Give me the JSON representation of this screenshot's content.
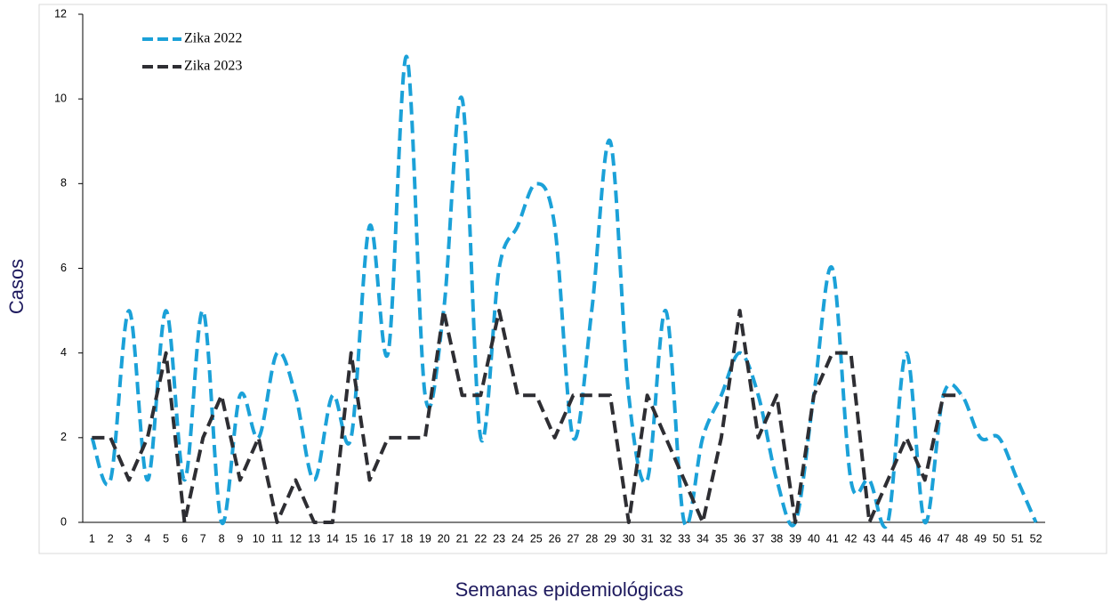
{
  "chart_data": {
    "type": "line",
    "x_label": "Semanas epidemiológicas",
    "y_label": "Casos",
    "categories": [
      "1",
      "2",
      "3",
      "4",
      "5",
      "6",
      "7",
      "8",
      "9",
      "10",
      "11",
      "12",
      "13",
      "14",
      "15",
      "16",
      "17",
      "18",
      "19",
      "20",
      "21",
      "22",
      "23",
      "24",
      "25",
      "26",
      "27",
      "28",
      "29",
      "30",
      "31",
      "32",
      "33",
      "34",
      "35",
      "36",
      "37",
      "38",
      "39",
      "40",
      "41",
      "42",
      "43",
      "44",
      "45",
      "46",
      "47",
      "48",
      "49",
      "50",
      "51",
      "52"
    ],
    "series": [
      {
        "name": "Zika 2022",
        "color": "#1ba1d8",
        "smooth": true,
        "values": [
          2,
          1,
          5,
          1,
          5,
          1,
          5,
          0,
          3,
          2,
          4,
          3,
          1,
          3,
          2,
          7,
          4,
          11,
          3,
          5,
          10,
          2,
          6,
          7,
          8,
          7,
          2,
          5,
          9,
          3,
          1,
          5,
          0,
          2,
          3,
          4,
          3,
          1,
          0,
          3,
          6,
          1,
          1,
          0,
          4,
          0,
          3,
          3,
          2,
          2,
          1,
          0
        ]
      },
      {
        "name": "Zika 2023",
        "color": "#2e2e33",
        "smooth": false,
        "values": [
          2,
          2,
          1,
          2,
          4,
          0,
          2,
          3,
          1,
          2,
          0,
          1,
          0,
          0,
          4,
          1,
          2,
          2,
          2,
          5,
          3,
          3,
          5,
          3,
          3,
          2,
          3,
          3,
          3,
          0,
          3,
          2,
          1,
          0,
          2,
          5,
          2,
          3,
          0,
          3,
          4,
          4,
          0,
          1,
          2,
          1,
          3,
          3,
          null,
          null,
          null,
          null
        ]
      }
    ],
    "ylim": [
      0,
      12
    ],
    "yticks": [
      0,
      2,
      4,
      6,
      8,
      10,
      12
    ],
    "legend": "upper left"
  }
}
